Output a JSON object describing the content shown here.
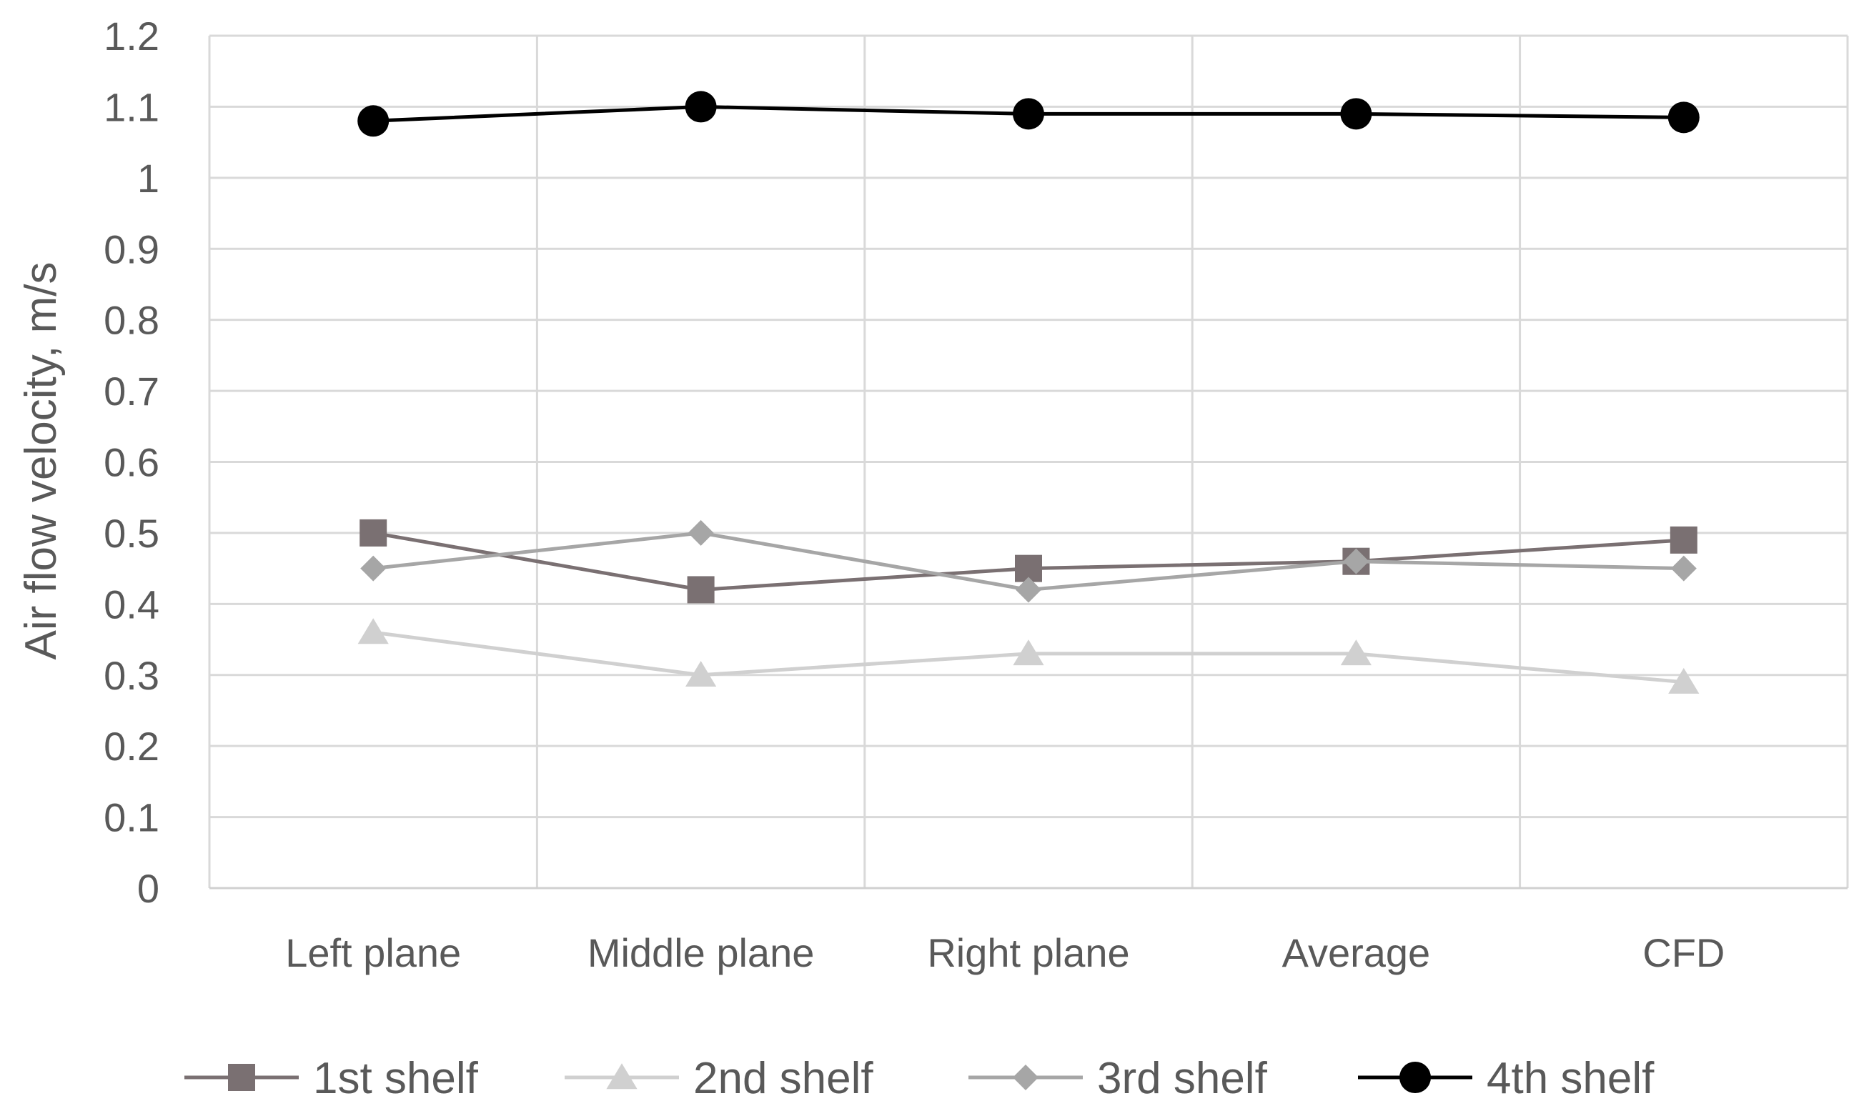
{
  "chart_data": {
    "type": "line",
    "title": "",
    "xlabel": "",
    "ylabel": "Air flow velocity, m/s",
    "categories": [
      "Left plane",
      "Middle plane",
      "Right plane",
      "Average",
      "CFD"
    ],
    "ylim": [
      0,
      1.2
    ],
    "yticks": [
      "0",
      "0.1",
      "0.2",
      "0.3",
      "0.4",
      "0.5",
      "0.6",
      "0.7",
      "0.8",
      "0.9",
      "1",
      "1.1",
      "1.2"
    ],
    "grid": true,
    "legend_position": "bottom",
    "series": [
      {
        "name": "1st shelf",
        "values": [
          0.5,
          0.42,
          0.45,
          0.46,
          0.49
        ],
        "color": "#7a7072",
        "marker": "square"
      },
      {
        "name": "2nd shelf",
        "values": [
          0.36,
          0.3,
          0.33,
          0.33,
          0.29
        ],
        "color": "#d0d0d0",
        "marker": "triangle"
      },
      {
        "name": "3rd shelf",
        "values": [
          0.45,
          0.5,
          0.42,
          0.46,
          0.45
        ],
        "color": "#a6a6a6",
        "marker": "diamond"
      },
      {
        "name": "4th shelf",
        "values": [
          1.08,
          1.1,
          1.09,
          1.09,
          1.085
        ],
        "color": "#000000",
        "marker": "circle"
      }
    ]
  }
}
